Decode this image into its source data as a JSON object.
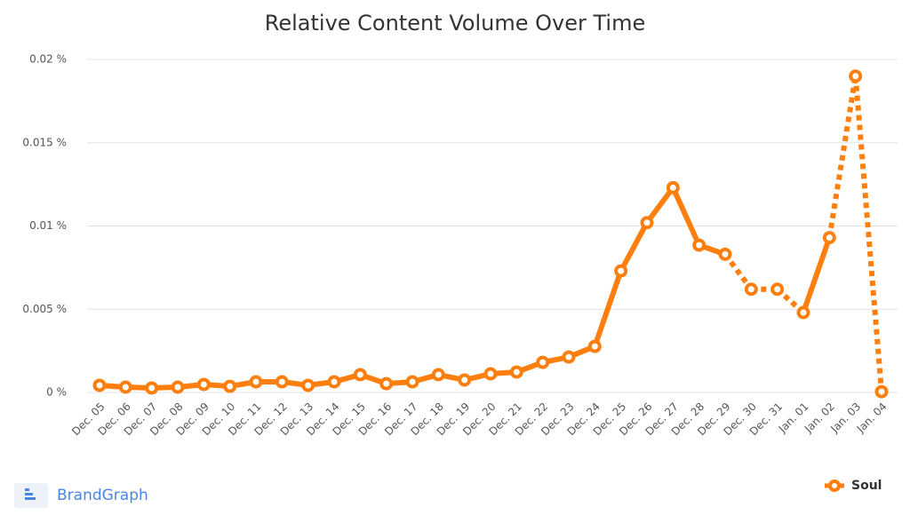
{
  "chart_data": {
    "type": "line",
    "title": "Relative Content Volume Over Time",
    "categories": [
      "Dec. 05",
      "Dec. 06",
      "Dec. 07",
      "Dec. 08",
      "Dec. 09",
      "Dec. 10",
      "Dec. 11",
      "Dec. 12",
      "Dec. 13",
      "Dec. 14",
      "Dec. 15",
      "Dec. 16",
      "Dec. 17",
      "Dec. 18",
      "Dec. 19",
      "Dec. 20",
      "Dec. 21",
      "Dec. 22",
      "Dec. 23",
      "Dec. 24",
      "Dec. 25",
      "Dec. 26",
      "Dec. 27",
      "Dec. 28",
      "Dec. 29",
      "Dec. 30",
      "Dec. 31",
      "Jan. 01",
      "Jan. 02",
      "Jan. 03",
      "Jan. 04"
    ],
    "series": [
      {
        "name": "Soul",
        "color": "#ff7f0e",
        "values": [
          0.00043,
          0.00032,
          0.00027,
          0.00032,
          0.00048,
          0.00037,
          0.00064,
          0.00064,
          0.00043,
          0.00064,
          0.00107,
          0.00053,
          0.00064,
          0.00107,
          0.00075,
          0.00112,
          0.00123,
          0.00181,
          0.00213,
          0.00277,
          0.0073,
          0.0102,
          0.0123,
          0.00885,
          0.0083,
          0.0062,
          0.0062,
          0.0048,
          0.0093,
          0.019,
          5e-05
        ],
        "segment_styles": [
          "solid",
          "solid",
          "solid",
          "solid",
          "solid",
          "solid",
          "solid",
          "solid",
          "solid",
          "solid",
          "solid",
          "solid",
          "solid",
          "solid",
          "solid",
          "solid",
          "solid",
          "solid",
          "solid",
          "solid",
          "solid",
          "solid",
          "solid",
          "solid",
          "dotted",
          "dotted",
          "dotted",
          "solid",
          "dotted",
          "dotted"
        ]
      }
    ],
    "ylim": [
      0,
      0.02
    ],
    "yticks": [
      {
        "value": 0,
        "label": "0 %"
      },
      {
        "value": 0.005,
        "label": "0.005 %"
      },
      {
        "value": 0.01,
        "label": "0.01 %"
      },
      {
        "value": 0.015,
        "label": "0.015 %"
      },
      {
        "value": 0.02,
        "label": "0.02 %"
      }
    ],
    "grid": true,
    "legend": "bottom-right",
    "branding": "BrandGraph"
  }
}
